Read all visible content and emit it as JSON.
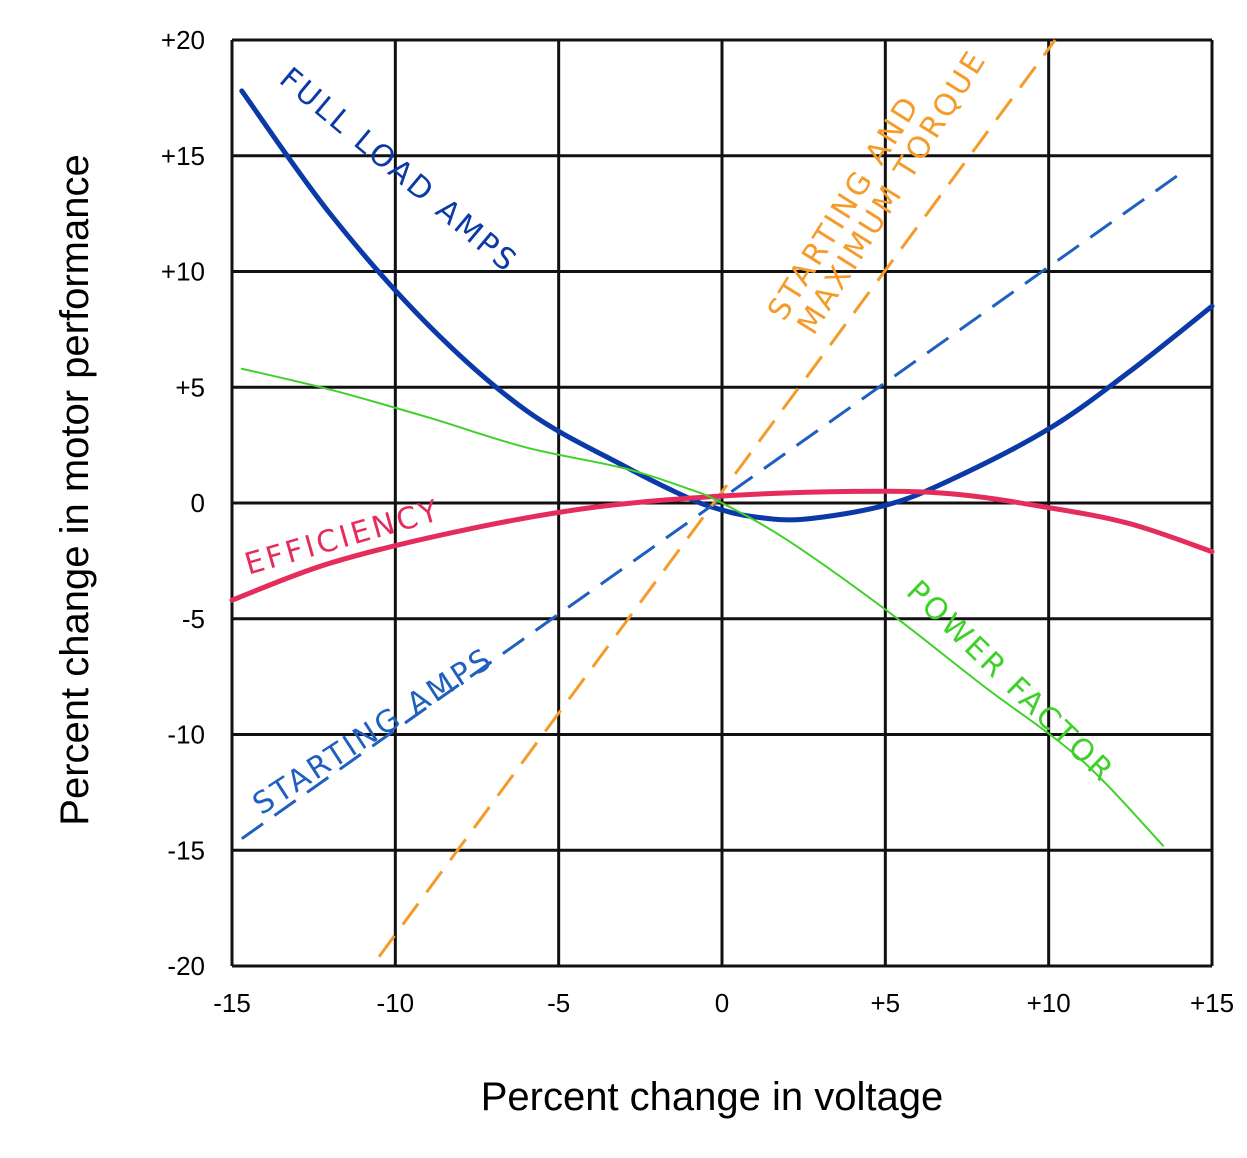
{
  "chart_data": {
    "type": "line",
    "xlabel": "Percent change in voltage",
    "ylabel": "Percent change in motor performance",
    "xlim": [
      -15,
      15
    ],
    "ylim": [
      -20,
      20
    ],
    "x_ticks": [
      "-15",
      "-10",
      "-5",
      "0",
      "+5",
      "+10",
      "+15"
    ],
    "y_ticks": [
      "+20",
      "+15",
      "+10",
      "+5",
      "0",
      "-5",
      "-10",
      "-15",
      "-20"
    ],
    "grid": true,
    "series": [
      {
        "name": "FULL LOAD AMPS",
        "color": "#0b3aa8",
        "style": "solid",
        "points": [
          [
            -14.7,
            17.8
          ],
          [
            -12,
            12.5
          ],
          [
            -9,
            7.7
          ],
          [
            -6,
            4
          ],
          [
            -3,
            1.6
          ],
          [
            -1,
            0.2
          ],
          [
            0,
            -0.3
          ],
          [
            1,
            -0.6
          ],
          [
            2.5,
            -0.7
          ],
          [
            5,
            -0.1
          ],
          [
            7,
            1
          ],
          [
            10,
            3.2
          ],
          [
            12.5,
            5.7
          ],
          [
            15,
            8.5
          ]
        ],
        "label_pos": [
          -13.6,
          18.2,
          40
        ]
      },
      {
        "name": "STARTING AMPS",
        "color": "#1f5fbf",
        "style": "dashed",
        "points": [
          [
            -14.7,
            -14.5
          ],
          [
            14,
            14.2
          ]
        ],
        "label_pos": [
          -14.1,
          -13.5,
          -33
        ]
      },
      {
        "name": "STARTING AND",
        "color": "#f49b2a",
        "style": "dashed",
        "points": [
          [
            -10.5,
            -19.6
          ],
          [
            10.2,
            20
          ]
        ],
        "label_pos": [
          1.9,
          7.8,
          -58
        ]
      },
      {
        "name": "MAXIMUM TORQUE",
        "color": "#f49b2a",
        "style": "none",
        "points": [],
        "label_pos": [
          2.8,
          7.2,
          -58
        ]
      },
      {
        "name": "EFFICIENCY",
        "color": "#e52d5b",
        "style": "solid",
        "points": [
          [
            -15,
            -4.2
          ],
          [
            -12,
            -2.6
          ],
          [
            -8,
            -1.2
          ],
          [
            -4,
            -0.2
          ],
          [
            0,
            0.3
          ],
          [
            4,
            0.5
          ],
          [
            7,
            0.4
          ],
          [
            10,
            -0.2
          ],
          [
            12.5,
            -0.9
          ],
          [
            15,
            -2.1
          ]
        ],
        "label_pos": [
          -14.5,
          -3.1,
          -16
        ]
      },
      {
        "name": "POWER FACTOR",
        "color": "#3fd12a",
        "style": "solid-thin",
        "points": [
          [
            -14.7,
            5.8
          ],
          [
            -12,
            4.9
          ],
          [
            -9,
            3.7
          ],
          [
            -6,
            2.4
          ],
          [
            -3,
            1.5
          ],
          [
            -1,
            0.6
          ],
          [
            0,
            0
          ],
          [
            2,
            -1.6
          ],
          [
            5,
            -4.6
          ],
          [
            8,
            -7.9
          ],
          [
            11,
            -11.1
          ],
          [
            13.5,
            -14.8
          ]
        ],
        "label_pos": [
          5.6,
          -3.9,
          44
        ]
      }
    ]
  }
}
